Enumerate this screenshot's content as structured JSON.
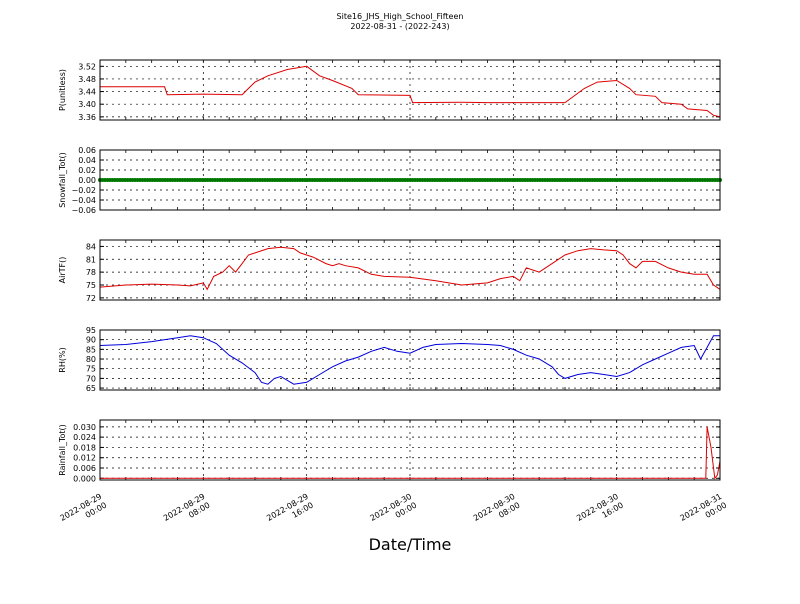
{
  "chart_data": {
    "type": "line",
    "title": "Site16_JHS_High_School_Fifteen",
    "subtitle": "2022-08-31 - (2022-243)",
    "xlabel": "Date/Time",
    "grid": true,
    "x_ticks": [
      {
        "hours": 0,
        "line1": "2022-08-29",
        "line2": "00:00"
      },
      {
        "hours": 8,
        "line1": "2022-08-29",
        "line2": "08:00"
      },
      {
        "hours": 16,
        "line1": "2022-08-29",
        "line2": "16:00"
      },
      {
        "hours": 24,
        "line1": "2022-08-30",
        "line2": "00:00"
      },
      {
        "hours": 32,
        "line1": "2022-08-30",
        "line2": "08:00"
      },
      {
        "hours": 40,
        "line1": "2022-08-30",
        "line2": "16:00"
      },
      {
        "hours": 48,
        "line1": "2022-08-31",
        "line2": "00:00"
      }
    ],
    "x_range_hours": [
      0,
      48
    ],
    "panels": [
      {
        "ylabel": "P(unitless)",
        "color": "#dd0000",
        "ylim": [
          3.35,
          3.54
        ],
        "yticks": [
          "3.52",
          "3.48",
          "3.44",
          "3.40",
          "3.36"
        ],
        "ytick_values": [
          3.52,
          3.48,
          3.44,
          3.4,
          3.36
        ],
        "points": [
          [
            0,
            3.455
          ],
          [
            5,
            3.455
          ],
          [
            5.2,
            3.43
          ],
          [
            8,
            3.432
          ],
          [
            11,
            3.43
          ],
          [
            11.5,
            3.45
          ],
          [
            12,
            3.47
          ],
          [
            13,
            3.49
          ],
          [
            14.5,
            3.51
          ],
          [
            16,
            3.52
          ],
          [
            17,
            3.49
          ],
          [
            18,
            3.475
          ],
          [
            19.5,
            3.45
          ],
          [
            20,
            3.43
          ],
          [
            24,
            3.428
          ],
          [
            24.2,
            3.405
          ],
          [
            28,
            3.406
          ],
          [
            30,
            3.405
          ],
          [
            36,
            3.405
          ],
          [
            36.5,
            3.42
          ],
          [
            37.5,
            3.45
          ],
          [
            38.5,
            3.47
          ],
          [
            40,
            3.475
          ],
          [
            41,
            3.45
          ],
          [
            41.5,
            3.43
          ],
          [
            43,
            3.425
          ],
          [
            43.5,
            3.405
          ],
          [
            45,
            3.4
          ],
          [
            45.5,
            3.385
          ],
          [
            47,
            3.38
          ],
          [
            47.5,
            3.365
          ],
          [
            48,
            3.36
          ]
        ]
      },
      {
        "ylabel": "Snowfall_Tot()",
        "color": "#007700",
        "ylim": [
          -0.06,
          0.06
        ],
        "yticks": [
          "0.06",
          "0.04",
          "0.02",
          "0.00",
          "−0.02",
          "−0.04",
          "−0.06"
        ],
        "ytick_values": [
          0.06,
          0.04,
          0.02,
          0.0,
          -0.02,
          -0.04,
          -0.06
        ],
        "points": [
          [
            0,
            0.0
          ],
          [
            48,
            0.0
          ]
        ],
        "markers": true
      },
      {
        "ylabel": "AirTF()",
        "color": "#dd0000",
        "ylim": [
          71.5,
          85.5
        ],
        "yticks": [
          "84",
          "81",
          "78",
          "75",
          "72"
        ],
        "ytick_values": [
          84,
          81,
          78,
          75,
          72
        ],
        "points": [
          [
            0,
            74.5
          ],
          [
            2,
            75
          ],
          [
            4,
            75.2
          ],
          [
            6,
            75
          ],
          [
            7,
            74.8
          ],
          [
            8,
            75.5
          ],
          [
            8.3,
            74
          ],
          [
            8.8,
            77
          ],
          [
            9.5,
            78
          ],
          [
            10,
            79.5
          ],
          [
            10.5,
            78
          ],
          [
            11,
            80
          ],
          [
            11.5,
            82
          ],
          [
            12,
            82.5
          ],
          [
            13,
            83.5
          ],
          [
            14,
            83.8
          ],
          [
            15,
            83.5
          ],
          [
            15.5,
            82.5
          ],
          [
            16.5,
            81.5
          ],
          [
            17.5,
            80
          ],
          [
            18,
            79.5
          ],
          [
            18.5,
            80
          ],
          [
            19,
            79.5
          ],
          [
            20,
            79
          ],
          [
            21,
            77.5
          ],
          [
            22,
            77
          ],
          [
            24,
            76.8
          ],
          [
            26,
            76
          ],
          [
            28,
            75
          ],
          [
            30,
            75.5
          ],
          [
            31,
            76.5
          ],
          [
            32,
            77
          ],
          [
            32.5,
            76
          ],
          [
            33,
            79
          ],
          [
            34,
            78
          ],
          [
            35,
            80
          ],
          [
            36,
            82
          ],
          [
            37,
            83
          ],
          [
            38,
            83.5
          ],
          [
            39,
            83.2
          ],
          [
            40,
            83
          ],
          [
            40.5,
            82
          ],
          [
            41,
            80
          ],
          [
            41.5,
            79
          ],
          [
            42,
            80.5
          ],
          [
            43,
            80.5
          ],
          [
            44,
            79
          ],
          [
            45,
            78
          ],
          [
            46,
            77.5
          ],
          [
            47,
            77.5
          ],
          [
            47.5,
            75
          ],
          [
            48,
            74
          ]
        ]
      },
      {
        "ylabel": "RH(%)",
        "color": "#0000dd",
        "ylim": [
          64,
          95
        ],
        "yticks": [
          "95",
          "90",
          "85",
          "80",
          "75",
          "70",
          "65"
        ],
        "ytick_values": [
          95,
          90,
          85,
          80,
          75,
          70,
          65
        ],
        "points": [
          [
            0,
            87
          ],
          [
            2,
            87.5
          ],
          [
            4,
            89
          ],
          [
            6,
            91
          ],
          [
            7,
            92
          ],
          [
            8,
            91
          ],
          [
            9,
            88
          ],
          [
            10,
            82
          ],
          [
            11,
            78
          ],
          [
            12,
            73
          ],
          [
            12.5,
            68
          ],
          [
            13,
            67
          ],
          [
            13.5,
            70
          ],
          [
            14,
            71
          ],
          [
            15,
            67
          ],
          [
            16,
            68
          ],
          [
            17,
            72
          ],
          [
            18,
            76
          ],
          [
            19,
            79
          ],
          [
            20,
            81
          ],
          [
            21,
            84
          ],
          [
            22,
            86
          ],
          [
            23,
            84
          ],
          [
            24,
            83
          ],
          [
            25,
            86
          ],
          [
            26,
            87.5
          ],
          [
            28,
            88
          ],
          [
            30,
            87.5
          ],
          [
            31,
            87
          ],
          [
            32,
            85
          ],
          [
            33,
            82
          ],
          [
            34,
            80
          ],
          [
            35,
            76
          ],
          [
            35.5,
            72
          ],
          [
            36,
            70
          ],
          [
            37,
            72
          ],
          [
            38,
            73
          ],
          [
            39,
            72
          ],
          [
            40,
            71
          ],
          [
            41,
            73
          ],
          [
            42,
            77
          ],
          [
            43,
            80
          ],
          [
            44,
            83
          ],
          [
            45,
            86
          ],
          [
            46,
            87
          ],
          [
            46.5,
            80
          ],
          [
            47,
            86
          ],
          [
            47.5,
            92
          ],
          [
            48,
            92
          ]
        ]
      },
      {
        "ylabel": "Rainfall_Tot()",
        "color": "#dd0000",
        "ylim": [
          -0.001,
          0.034
        ],
        "yticks": [
          "0.030",
          "0.024",
          "0.018",
          "0.012",
          "0.006",
          "0.000"
        ],
        "ytick_values": [
          0.03,
          0.024,
          0.018,
          0.012,
          0.006,
          0.0
        ],
        "points": [
          [
            0,
            0
          ],
          [
            46.9,
            0
          ],
          [
            47.0,
            0.03
          ],
          [
            47.3,
            0.018
          ],
          [
            47.6,
            0.0
          ],
          [
            47.8,
            0.002
          ],
          [
            48,
            0.01
          ]
        ]
      }
    ]
  }
}
